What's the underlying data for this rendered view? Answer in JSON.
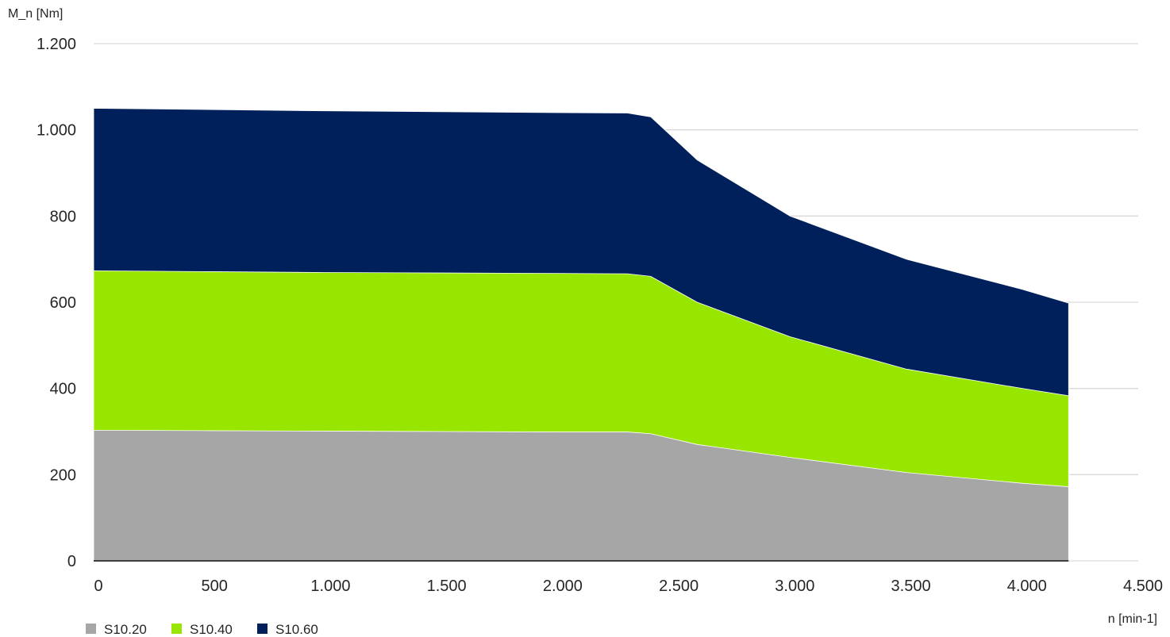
{
  "chart_data": {
    "type": "area",
    "stacked": true,
    "ylabel": "M_n [Nm]",
    "xlabel": "n [min-1]",
    "xlim": [
      0,
      4500
    ],
    "ylim": [
      0,
      1200
    ],
    "x_ticks": [
      0,
      500,
      1000,
      1500,
      2000,
      2500,
      3000,
      3500,
      4000,
      4500
    ],
    "x_tick_labels": [
      "0",
      "500",
      "1.000",
      "1.500",
      "2.000",
      "2.500",
      "3.000",
      "3.500",
      "4.000",
      "4.500"
    ],
    "y_ticks": [
      0,
      200,
      400,
      600,
      800,
      1000,
      1200
    ],
    "y_tick_labels": [
      "0",
      "200",
      "400",
      "600",
      "800",
      "1.000",
      "1.200"
    ],
    "grid": true,
    "legend_position": "bottom-left",
    "x": [
      0,
      500,
      1000,
      1500,
      2000,
      2300,
      2400,
      2600,
      3000,
      3500,
      4000,
      4200
    ],
    "series": [
      {
        "name": "S10.20",
        "color": "#a6a6a6",
        "values": [
          303,
          302,
          301,
          300,
          299,
          299,
          295,
          270,
          240,
          205,
          180,
          172
        ]
      },
      {
        "name": "S10.40",
        "color": "#98e600",
        "values": [
          673,
          671,
          669,
          668,
          667,
          666,
          660,
          600,
          520,
          445,
          400,
          383
        ]
      },
      {
        "name": "S10.60",
        "color": "#00205b",
        "values": [
          1050,
          1047,
          1044,
          1042,
          1040,
          1039,
          1030,
          930,
          800,
          700,
          630,
          598
        ]
      }
    ]
  }
}
